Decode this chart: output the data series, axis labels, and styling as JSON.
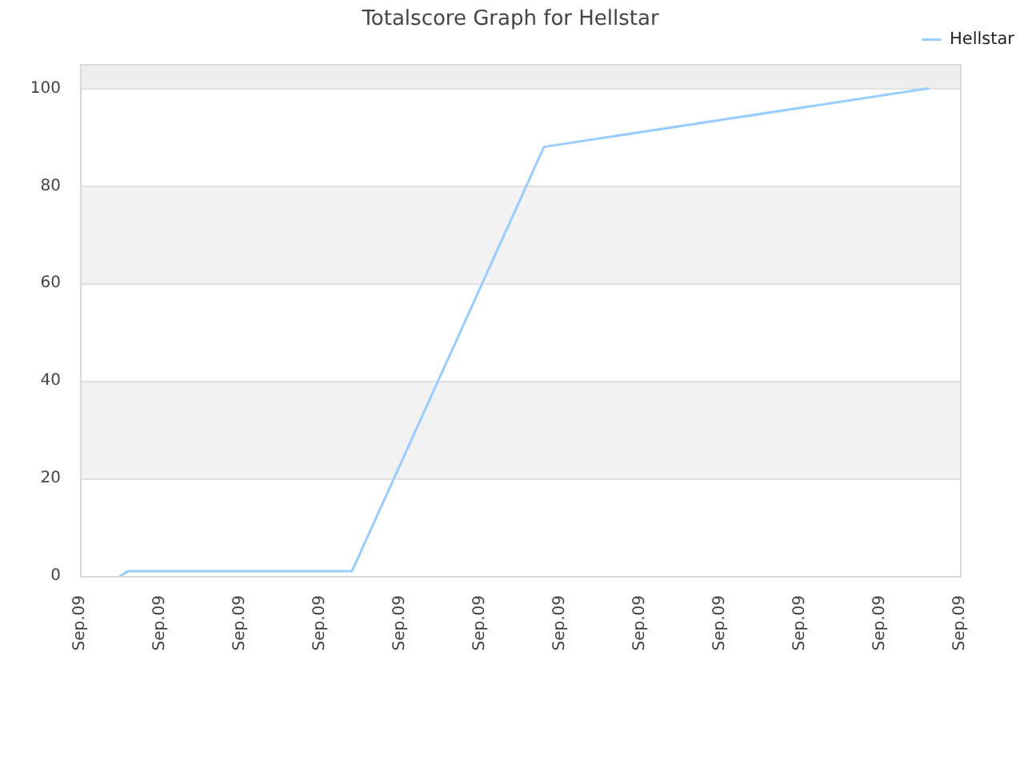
{
  "chart_data": {
    "type": "line",
    "title": "Totalscore Graph for Hellstar",
    "categories": [
      "Sep.09",
      null,
      null,
      null,
      null,
      null,
      null,
      null,
      null,
      null,
      "Sep.09",
      null,
      null,
      null,
      null,
      null,
      null,
      null,
      null,
      null,
      "Sep.09",
      null,
      null,
      null,
      null,
      null,
      null,
      null,
      null,
      null,
      "Sep.09",
      null,
      null,
      null,
      null,
      null,
      null,
      null,
      null,
      null,
      "Sep.09",
      null,
      null,
      null,
      null,
      null,
      null,
      null,
      null,
      null,
      "Sep.09",
      null,
      null,
      null,
      null,
      null,
      null,
      null,
      null,
      null,
      "Sep.09",
      null,
      null,
      null,
      null,
      null,
      null,
      null,
      null,
      null,
      "Sep.09",
      null,
      null,
      null,
      null,
      null,
      null,
      null,
      null,
      null,
      "Sep.09",
      null,
      null,
      null,
      null,
      null,
      null,
      null,
      null,
      null,
      "Sep.09",
      null,
      null,
      null,
      null,
      null,
      null,
      null,
      null,
      null,
      "Sep.09",
      null,
      null,
      null,
      null,
      null,
      null,
      null,
      null,
      null,
      "Sep.09"
    ],
    "series": [
      {
        "name": "Hellstar",
        "color": "#99ccff",
        "values": [
          null,
          null,
          null,
          null,
          null,
          0,
          1,
          null,
          null,
          null,
          null,
          null,
          null,
          null,
          null,
          null,
          null,
          null,
          null,
          null,
          null,
          null,
          null,
          null,
          null,
          null,
          null,
          null,
          null,
          null,
          null,
          null,
          null,
          null,
          1,
          null,
          null,
          null,
          null,
          null,
          null,
          null,
          null,
          null,
          null,
          null,
          null,
          null,
          null,
          null,
          null,
          null,
          null,
          null,
          null,
          null,
          null,
          null,
          88,
          null,
          null,
          null,
          null,
          null,
          null,
          null,
          null,
          null,
          null,
          null,
          null,
          null,
          null,
          null,
          null,
          null,
          null,
          null,
          null,
          null,
          null,
          null,
          null,
          null,
          null,
          null,
          null,
          null,
          null,
          null,
          null,
          null,
          null,
          null,
          null,
          null,
          null,
          null,
          null,
          null,
          null,
          null,
          null,
          null,
          null,
          null,
          100,
          null,
          null,
          null,
          null
        ]
      }
    ],
    "ylim": [
      0,
      105
    ],
    "yticks": [
      0,
      20,
      40,
      60,
      80,
      100
    ],
    "grid": "y",
    "legend": "top right",
    "marker": "none",
    "line_style": "solid",
    "bands": [
      {
        "axis": "y",
        "from": 20,
        "to": 40,
        "color": "#f2f2f2"
      },
      {
        "axis": "y",
        "from": 60,
        "to": 80,
        "color": "#f2f2f2"
      },
      {
        "axis": "y",
        "from": 100,
        "to": 105,
        "color": "#eeeeee"
      }
    ]
  }
}
